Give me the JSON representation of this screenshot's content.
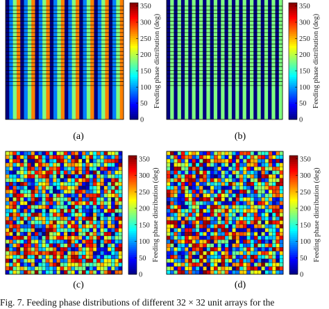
{
  "figure_caption": "Fig. 7.   Feeding phase distributions of different 32 × 32 unit arrays for the",
  "colorbar": {
    "label": "Feeding phase distribution (deg)",
    "ticks": [
      "0",
      "50",
      "100",
      "150",
      "200",
      "250",
      "300",
      "350"
    ],
    "range": [
      0,
      360
    ],
    "colormap": "jet"
  },
  "chart_data": [
    {
      "type": "heatmap",
      "panel": "(a)",
      "rows": 32,
      "cols": 32,
      "pattern": "vertical stripes; each column constant",
      "column_phases_deg": [
        0,
        90,
        180,
        270,
        0,
        90,
        180,
        270,
        0,
        90,
        180,
        270,
        0,
        90,
        180,
        270,
        0,
        90,
        180,
        270,
        0,
        90,
        180,
        270,
        0,
        90,
        180,
        270,
        0,
        90,
        180,
        270
      ],
      "zlim": [
        0,
        360
      ]
    },
    {
      "type": "heatmap",
      "panel": "(b)",
      "rows": 32,
      "cols": 32,
      "pattern": "vertical stripes; columns alternate between two phase states",
      "column_phases_deg": [
        0,
        180,
        0,
        180,
        0,
        180,
        0,
        180,
        0,
        180,
        0,
        180,
        0,
        180,
        0,
        180,
        0,
        180,
        0,
        180,
        0,
        180,
        0,
        180,
        0,
        180,
        0,
        180,
        0,
        180,
        0,
        180
      ],
      "zlim": [
        0,
        360
      ]
    },
    {
      "type": "heatmap",
      "panel": "(c)",
      "rows": 32,
      "cols": 32,
      "pattern": "irregular per-cell phase distribution (values span 0-360 deg)",
      "zlim": [
        0,
        360
      ]
    },
    {
      "type": "heatmap",
      "panel": "(d)",
      "rows": 32,
      "cols": 32,
      "pattern": "irregular per-cell phase distribution (values span 0-360 deg)",
      "zlim": [
        0,
        360
      ]
    }
  ]
}
